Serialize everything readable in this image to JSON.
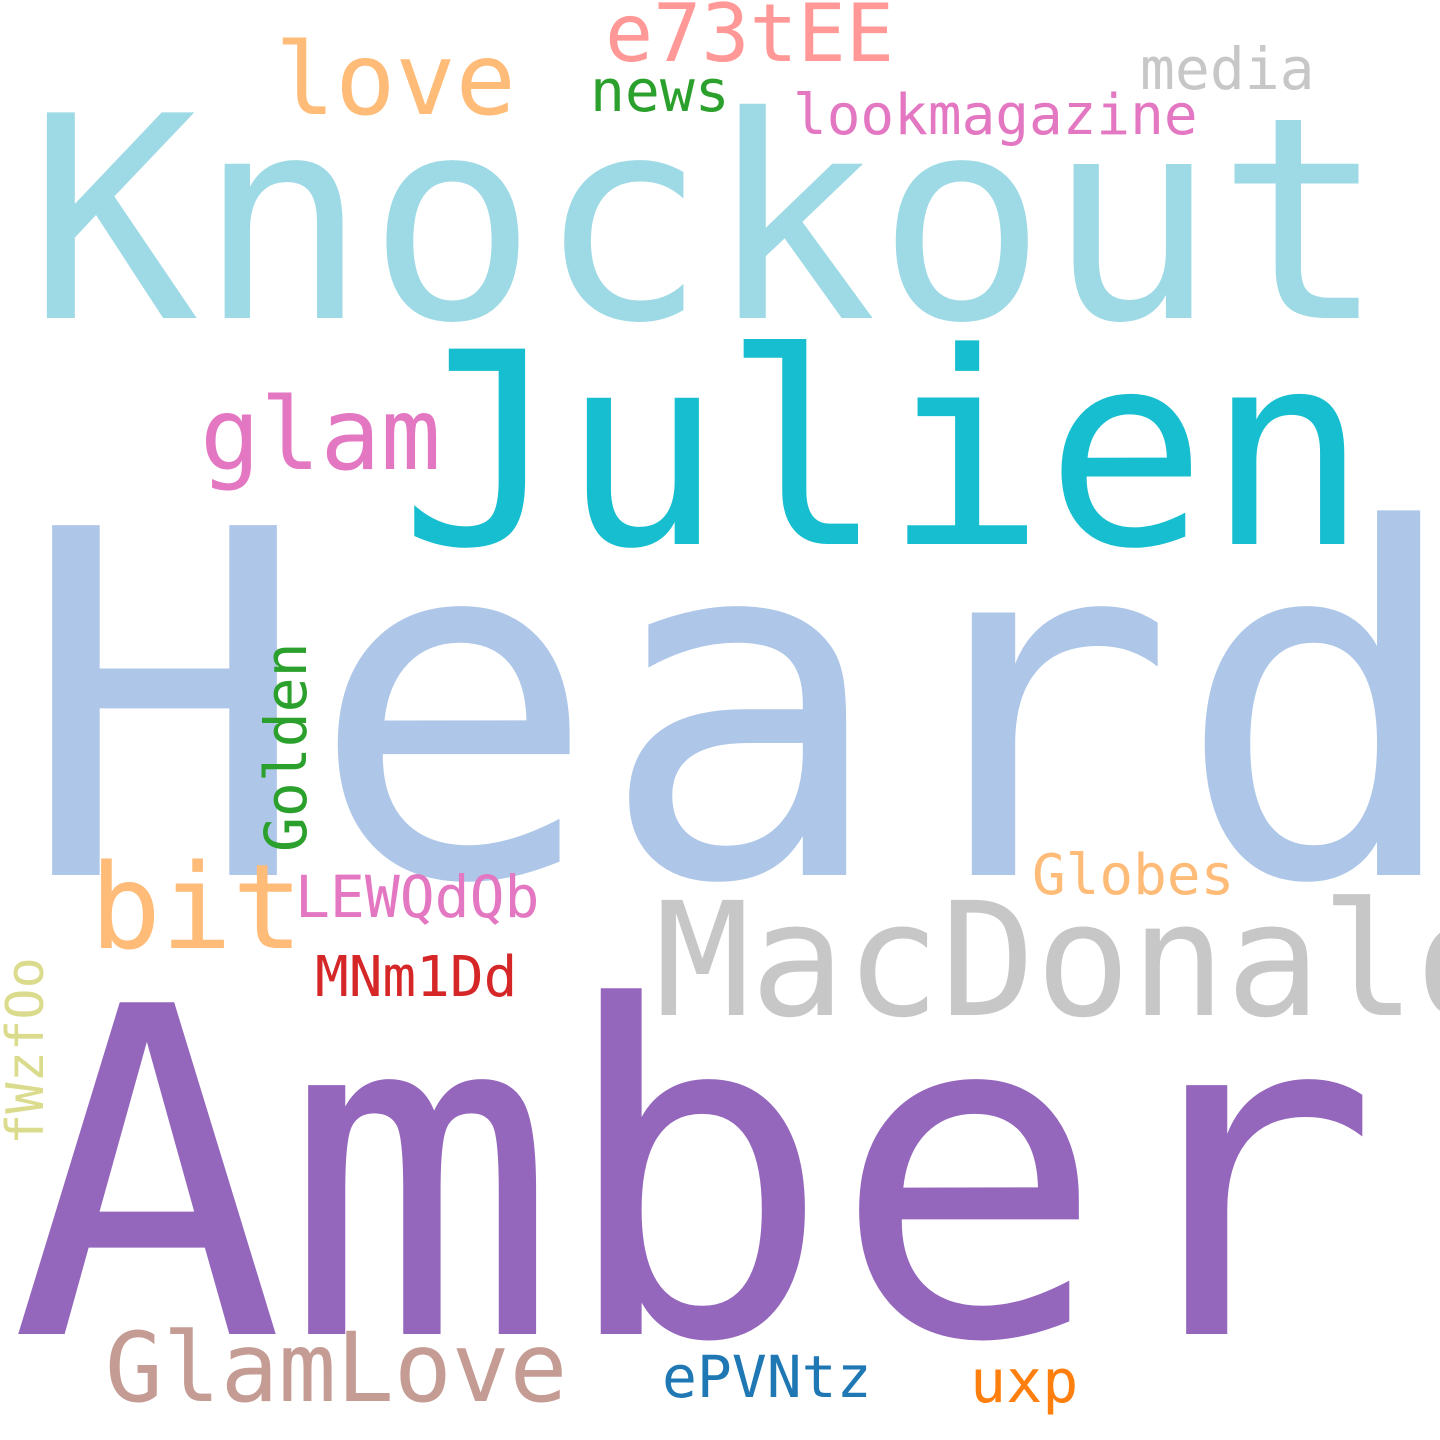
{
  "words": [
    {
      "id": "heard",
      "text": "Heard",
      "color": "#aec7e8"
    },
    {
      "id": "amber",
      "text": "Amber",
      "color": "#9467bd"
    },
    {
      "id": "knockout",
      "text": "Knockout",
      "color": "#9edae5"
    },
    {
      "id": "julien",
      "text": "Julien",
      "color": "#17becf"
    },
    {
      "id": "macdonald",
      "text": "MacDonald",
      "color": "#c7c7c7"
    },
    {
      "id": "glamlove",
      "text": "GlamLove",
      "color": "#c49c94"
    },
    {
      "id": "bit",
      "text": "bit",
      "color": "#ffbb78"
    },
    {
      "id": "glam",
      "text": "glam",
      "color": "#e377c2"
    },
    {
      "id": "love",
      "text": "love",
      "color": "#ffbb78"
    },
    {
      "id": "e73tee",
      "text": "e73tEE",
      "color": "#ff9896"
    },
    {
      "id": "media",
      "text": "media",
      "color": "#c7c7c7"
    },
    {
      "id": "lookmagazine",
      "text": "lookmagazine",
      "color": "#e377c2"
    },
    {
      "id": "news",
      "text": "news",
      "color": "#2ca02c"
    },
    {
      "id": "golden",
      "text": "Golden",
      "color": "#2ca02c"
    },
    {
      "id": "lewqdqb",
      "text": "LEWQdQb",
      "color": "#e377c2"
    },
    {
      "id": "globes",
      "text": "Globes",
      "color": "#ffbb78"
    },
    {
      "id": "mnm1dd",
      "text": "MNm1Dd",
      "color": "#d62728"
    },
    {
      "id": "fwzf0o",
      "text": "fWzfOo",
      "color": "#dbdb8d"
    },
    {
      "id": "epvntz",
      "text": "ePVNtz",
      "color": "#1f77b4"
    },
    {
      "id": "uxp",
      "text": "uxp",
      "color": "#ff7f0e"
    }
  ]
}
